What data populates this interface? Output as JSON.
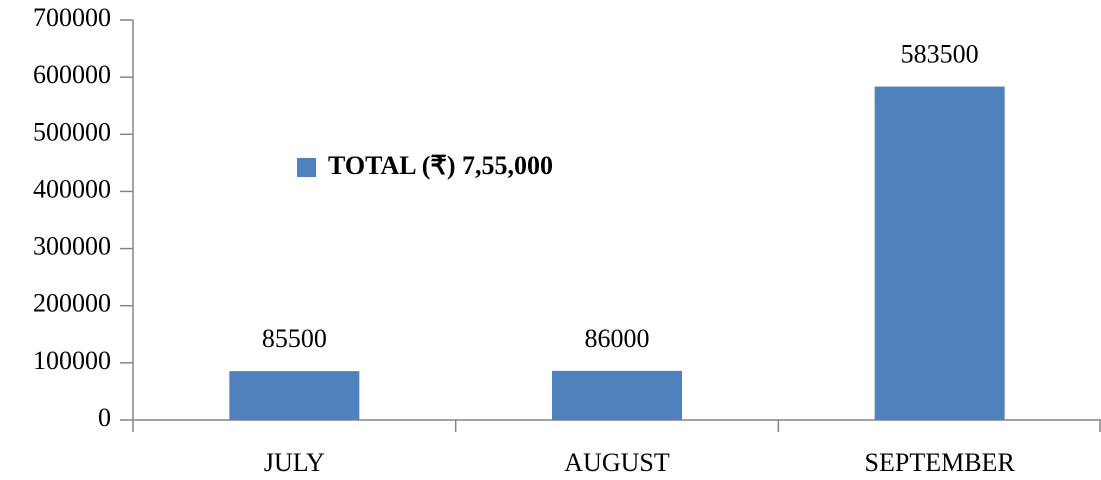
{
  "chart_data": {
    "type": "bar",
    "categories": [
      "JULY",
      "AUGUST",
      "SEPTEMBER"
    ],
    "series": [
      {
        "name": "TOTAL (₹) 7,55,000",
        "color": "#4f81bd",
        "values": [
          85500,
          86000,
          583500
        ]
      }
    ],
    "ylim": [
      0,
      700000
    ],
    "yticks": [
      0,
      100000,
      200000,
      300000,
      400000,
      500000,
      600000,
      700000
    ],
    "grid": false
  }
}
